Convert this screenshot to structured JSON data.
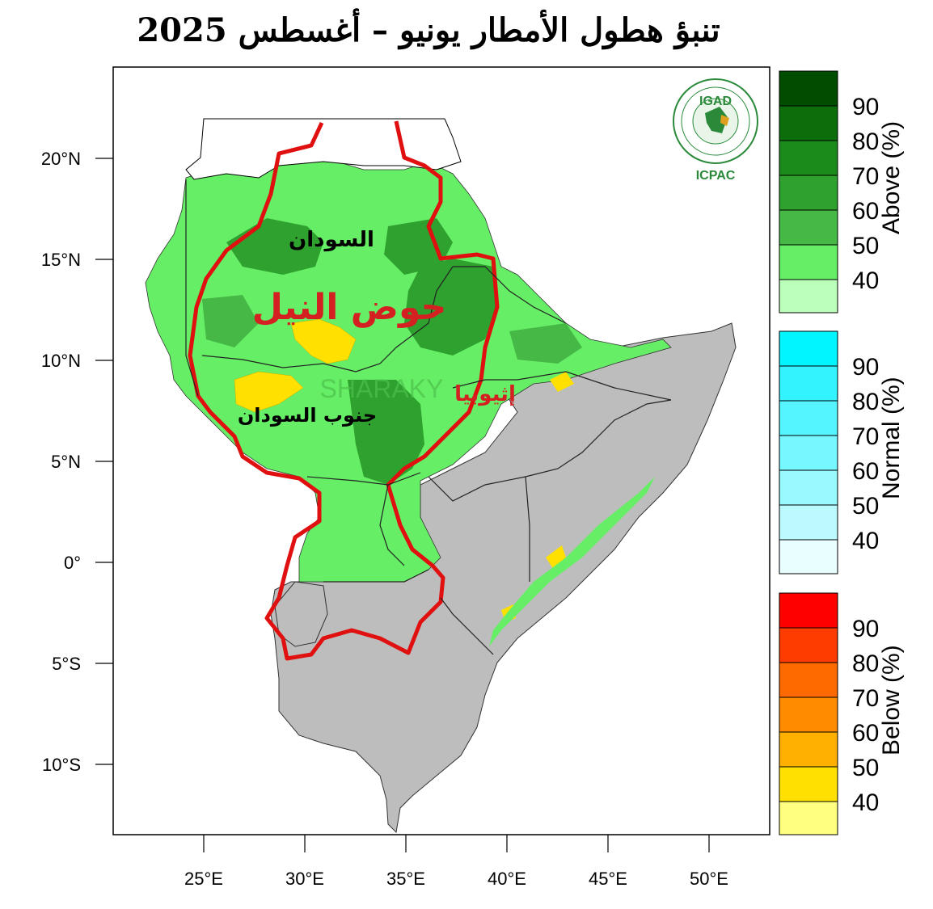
{
  "title": "تنبؤ هطول الأمطار يونيو – أغسطس 2025",
  "logo": {
    "top_text": "IGAD",
    "bottom_text": "ICPAC"
  },
  "map_labels": {
    "sudan": "السودان",
    "nile_basin": "حوض النيل",
    "south_sudan": "جنوب السودان",
    "ethiopia": "إثيوبيا",
    "watermark": "SHARAKY"
  },
  "axes": {
    "lat_ticks": [
      "20°N",
      "15°N",
      "10°N",
      "5°N",
      "0°",
      "5°S",
      "10°S"
    ],
    "lon_ticks": [
      "25°E",
      "30°E",
      "35°E",
      "40°E",
      "45°E",
      "50°E"
    ]
  },
  "legend": {
    "above": {
      "title": "Above (%)",
      "levels": [
        "90",
        "80",
        "70",
        "60",
        "50",
        "40"
      ],
      "colors": [
        "#004d00",
        "#0b6e0b",
        "#1b8c1b",
        "#2ea12e",
        "#45b845",
        "#66ee66",
        "#bbffbb"
      ]
    },
    "normal": {
      "title": "Normal (%)",
      "levels": [
        "90",
        "80",
        "70",
        "60",
        "50",
        "40"
      ],
      "colors": [
        "#00f5ff",
        "#33f3ff",
        "#55f5ff",
        "#77f7ff",
        "#99f9ff",
        "#bbfbff",
        "#e8feff"
      ]
    },
    "below": {
      "title": "Below (%)",
      "levels": [
        "90",
        "80",
        "70",
        "60",
        "50",
        "40"
      ],
      "colors": [
        "#ff0000",
        "#ff3c00",
        "#ff6a00",
        "#ff8c00",
        "#ffb000",
        "#ffe000",
        "#ffff80"
      ]
    }
  },
  "colors": {
    "land_gray": "#bdbdbd",
    "basin_outline": "#e01010",
    "above_light": "#66ee66",
    "above_dark": "#2ea12e",
    "below_yellow": "#ffe000"
  }
}
